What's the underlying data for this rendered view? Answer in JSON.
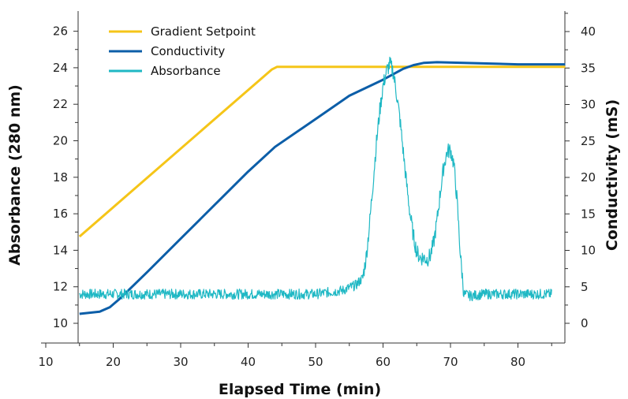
{
  "chart_data": {
    "type": "line",
    "xlabel": "Elapsed Time (min)",
    "ylabel_left": "Absorbance (280 nm)",
    "ylabel_right": "Conductivity (mS)",
    "xlim": [
      10,
      87
    ],
    "ylim_left": [
      9.5,
      26.9
    ],
    "ylim_right": [
      -3.1,
      43
    ],
    "x_ticks": [
      10,
      20,
      30,
      40,
      50,
      60,
      70,
      80
    ],
    "y_left_ticks": [
      10,
      12,
      14,
      16,
      18,
      20,
      22,
      24,
      26
    ],
    "y_right_ticks": [
      0,
      5,
      10,
      15,
      20,
      25,
      30,
      35,
      40
    ],
    "grid": false,
    "legend_position": "top-left",
    "series": [
      {
        "name": "Gradient Setpoint",
        "color": "#f5c518",
        "axis": "left",
        "x": [
          15,
          43.5,
          44.3,
          87
        ],
        "y": [
          14.75,
          23.9,
          24.05,
          24.05
        ]
      },
      {
        "name": "Conductivity",
        "color": "#0c5ea8",
        "axis": "right",
        "x": [
          15,
          18,
          19.5,
          21,
          23,
          25,
          30,
          35,
          40,
          44,
          50,
          55,
          60,
          63,
          64.5,
          66,
          68,
          72,
          80,
          87
        ],
        "y": [
          1.3,
          1.6,
          2.2,
          3.4,
          5.2,
          7.0,
          11.6,
          16.2,
          20.8,
          24.2,
          28.0,
          31.2,
          33.4,
          34.9,
          35.4,
          35.7,
          35.8,
          35.7,
          35.5,
          35.5
        ]
      },
      {
        "name": "Absorbance",
        "color": "#1fb8c4",
        "axis": "left",
        "x": [
          15,
          20,
          25,
          30,
          35,
          40,
          45,
          50,
          54,
          56,
          57,
          57.5,
          58,
          58.5,
          59,
          59.5,
          60,
          60.5,
          61,
          61.5,
          62,
          62.5,
          63,
          63.5,
          64,
          64.5,
          65,
          65.5,
          66,
          66.5,
          67,
          67.5,
          68,
          68.5,
          69,
          69.5,
          70,
          70.5,
          71,
          71.5,
          72,
          73,
          75,
          80,
          85
        ],
        "y": [
          11.6,
          11.6,
          11.6,
          11.6,
          11.6,
          11.6,
          11.6,
          11.6,
          11.8,
          12.1,
          12.5,
          13.6,
          15.4,
          17.6,
          19.8,
          21.6,
          23.0,
          23.8,
          24.2,
          23.8,
          22.6,
          21.2,
          19.4,
          17.6,
          16.0,
          14.8,
          13.9,
          13.6,
          13.6,
          13.5,
          13.7,
          14.4,
          15.6,
          17.2,
          18.6,
          19.4,
          19.5,
          18.7,
          16.6,
          13.6,
          11.6,
          11.5,
          11.6,
          11.6,
          11.6
        ]
      }
    ]
  }
}
